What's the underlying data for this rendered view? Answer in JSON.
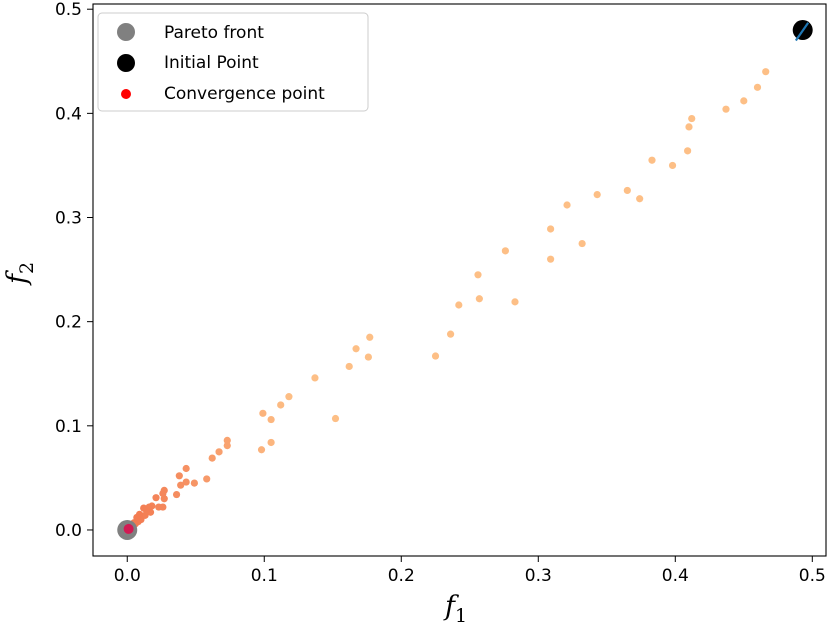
{
  "chart_data": {
    "type": "scatter",
    "title": "",
    "xlabel": "f",
    "xlabel_sub": "1",
    "ylabel": "f",
    "ylabel_sub": "2",
    "xlim": [
      -0.025,
      0.51
    ],
    "ylim": [
      -0.025,
      0.505
    ],
    "xticks": [
      0.0,
      0.1,
      0.2,
      0.3,
      0.4,
      0.5
    ],
    "xtick_labels": [
      "0.0",
      "0.1",
      "0.2",
      "0.3",
      "0.4",
      "0.5"
    ],
    "yticks": [
      0.0,
      0.1,
      0.2,
      0.3,
      0.4,
      0.5
    ],
    "ytick_labels": [
      "0.0",
      "0.1",
      "0.2",
      "0.3",
      "0.4",
      "0.5"
    ],
    "grid": false,
    "legend_position": "top-left",
    "legend": [
      {
        "label": "Pareto front",
        "color": "#808080",
        "marker": "large-circle"
      },
      {
        "label": "Initial Point",
        "color": "#000000",
        "marker": "large-circle"
      },
      {
        "label": "Convergence point",
        "color": "#ff0000",
        "marker": "small-circle"
      }
    ],
    "colors": {
      "trajectory_start": "#fdbf86",
      "trajectory_end": "#f2784f",
      "pareto": "#808080",
      "initial": "#000000",
      "convergence": "#d21a53",
      "initial_direction": "#1f77b4"
    },
    "series": [
      {
        "name": "Pareto front",
        "points": [
          [
            0.0,
            0.0
          ]
        ]
      },
      {
        "name": "Initial Point",
        "points": [
          [
            0.493,
            0.48
          ]
        ]
      },
      {
        "name": "Convergence point",
        "points": [
          [
            0.001,
            0.001
          ]
        ]
      },
      {
        "name": "",
        "points": [
          [
            0.466,
            0.44
          ],
          [
            0.46,
            0.425
          ],
          [
            0.45,
            0.412
          ],
          [
            0.437,
            0.404
          ],
          [
            0.412,
            0.395
          ],
          [
            0.41,
            0.387
          ],
          [
            0.409,
            0.364
          ],
          [
            0.398,
            0.35
          ],
          [
            0.383,
            0.355
          ],
          [
            0.374,
            0.318
          ],
          [
            0.365,
            0.326
          ],
          [
            0.343,
            0.322
          ],
          [
            0.332,
            0.275
          ],
          [
            0.321,
            0.312
          ],
          [
            0.309,
            0.289
          ],
          [
            0.309,
            0.26
          ],
          [
            0.283,
            0.219
          ],
          [
            0.276,
            0.268
          ],
          [
            0.256,
            0.245
          ],
          [
            0.257,
            0.222
          ],
          [
            0.242,
            0.216
          ],
          [
            0.236,
            0.188
          ],
          [
            0.225,
            0.167
          ],
          [
            0.177,
            0.185
          ],
          [
            0.176,
            0.166
          ],
          [
            0.167,
            0.174
          ],
          [
            0.162,
            0.157
          ],
          [
            0.152,
            0.107
          ],
          [
            0.137,
            0.146
          ],
          [
            0.118,
            0.128
          ],
          [
            0.112,
            0.12
          ],
          [
            0.105,
            0.106
          ],
          [
            0.105,
            0.084
          ],
          [
            0.099,
            0.112
          ],
          [
            0.098,
            0.077
          ],
          [
            0.073,
            0.086
          ],
          [
            0.073,
            0.081
          ],
          [
            0.067,
            0.075
          ],
          [
            0.062,
            0.069
          ],
          [
            0.058,
            0.049
          ],
          [
            0.049,
            0.045
          ],
          [
            0.043,
            0.059
          ],
          [
            0.043,
            0.046
          ],
          [
            0.039,
            0.043
          ],
          [
            0.038,
            0.052
          ],
          [
            0.036,
            0.034
          ],
          [
            0.027,
            0.038
          ],
          [
            0.027,
            0.03
          ],
          [
            0.026,
            0.035
          ],
          [
            0.026,
            0.022
          ],
          [
            0.023,
            0.022
          ],
          [
            0.021,
            0.031
          ],
          [
            0.018,
            0.023
          ],
          [
            0.017,
            0.017
          ],
          [
            0.016,
            0.022
          ],
          [
            0.014,
            0.019
          ],
          [
            0.013,
            0.014
          ],
          [
            0.012,
            0.021
          ],
          [
            0.01,
            0.01
          ],
          [
            0.009,
            0.015
          ],
          [
            0.008,
            0.008
          ],
          [
            0.007,
            0.012
          ],
          [
            0.006,
            0.006
          ],
          [
            0.005,
            0.007
          ],
          [
            0.004,
            0.004
          ],
          [
            0.003,
            0.003
          ],
          [
            0.002,
            0.002
          ]
        ]
      },
      {
        "name": "",
        "segment": [
          [
            0.488,
            0.47
          ],
          [
            0.497,
            0.487
          ]
        ]
      }
    ]
  }
}
